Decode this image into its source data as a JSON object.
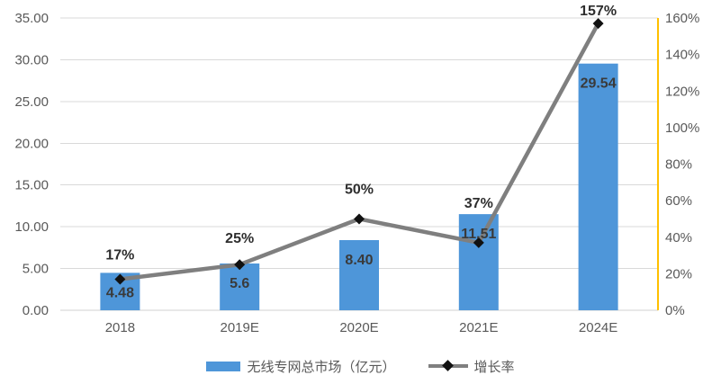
{
  "chart_data": {
    "type": "combo-bar-line",
    "categories": [
      "2018",
      "2019E",
      "2020E",
      "2021E",
      "2024E"
    ],
    "series": [
      {
        "name": "无线专网总市场（亿元）",
        "type": "bar",
        "axis": "left",
        "values": [
          4.48,
          5.6,
          8.4,
          11.51,
          29.54
        ],
        "data_labels": [
          "4.48",
          "5.6",
          "8.40",
          "11.51",
          "29.54"
        ],
        "color": "#4e96d9"
      },
      {
        "name": "增长率",
        "type": "line",
        "axis": "right",
        "values": [
          17,
          25,
          50,
          37,
          157
        ],
        "data_labels": [
          "17%",
          "25%",
          "50%",
          "37%",
          "157%"
        ],
        "color": "#7f7f7f",
        "marker": "diamond",
        "marker_color": "#111111"
      }
    ],
    "left_axis": {
      "min": 0,
      "max": 35,
      "step": 5,
      "tick_labels": [
        "0.00",
        "5.00",
        "10.00",
        "15.00",
        "20.00",
        "25.00",
        "30.00",
        "35.00"
      ]
    },
    "right_axis": {
      "min": 0,
      "max": 160,
      "step": 20,
      "tick_labels": [
        "0%",
        "20%",
        "40%",
        "60%",
        "80%",
        "100%",
        "120%",
        "140%",
        "160%"
      ],
      "axis_line_color": "#ffc000"
    },
    "grid": true,
    "legend_position": "bottom",
    "colors": {
      "grid": "#d9d9d9",
      "bottom_axis": "#d2d2d2",
      "axis_text": "#595959",
      "bar_value_label": "#3a3a3a",
      "percent_label": "#2e2e2e"
    }
  }
}
